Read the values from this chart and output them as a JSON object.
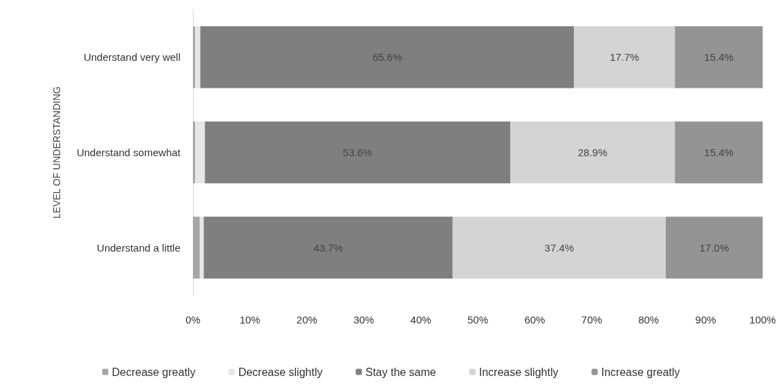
{
  "chart_data": {
    "type": "bar",
    "orientation": "horizontal",
    "stacked": true,
    "ylabel": "LEVEL OF UNDERSTANDING",
    "categories": [
      "Understand very well",
      "Understand somewhat",
      "Understand a little"
    ],
    "series": [
      {
        "name": "Decrease greatly",
        "color": "#a6a6a6",
        "values": [
          0.4,
          0.4,
          1.2
        ],
        "value_labels": [
          null,
          null,
          null
        ]
      },
      {
        "name": "Decrease slightly",
        "color": "#e6e6e6",
        "values": [
          0.9,
          1.7,
          0.7
        ],
        "value_labels": [
          null,
          null,
          null
        ]
      },
      {
        "name": "Stay the same",
        "color": "#7f7f7f",
        "values": [
          65.6,
          53.6,
          43.7
        ],
        "value_labels": [
          "65.6%",
          "53.6%",
          "43.7%"
        ]
      },
      {
        "name": "Increase slightly",
        "color": "#d4d4d4",
        "values": [
          17.7,
          28.9,
          37.4
        ],
        "value_labels": [
          "17.7%",
          "28.9%",
          "37.4%"
        ]
      },
      {
        "name": "Increase greatly",
        "color": "#949494",
        "values": [
          15.4,
          15.4,
          17.0
        ],
        "value_labels": [
          "15.4%",
          "15.4%",
          "17.0%"
        ]
      }
    ],
    "xlim": [
      0,
      100
    ],
    "xticks": [
      {
        "value": 0,
        "label": "0%"
      },
      {
        "value": 10,
        "label": "10%"
      },
      {
        "value": 20,
        "label": "20%"
      },
      {
        "value": 30,
        "label": "30%"
      },
      {
        "value": 40,
        "label": "40%"
      },
      {
        "value": 50,
        "label": "50%"
      },
      {
        "value": 60,
        "label": "60%"
      },
      {
        "value": 70,
        "label": "70%"
      },
      {
        "value": 80,
        "label": "80%"
      },
      {
        "value": 90,
        "label": "90%"
      },
      {
        "value": 100,
        "label": "100%"
      }
    ],
    "grid": false,
    "legend": "bottom"
  }
}
